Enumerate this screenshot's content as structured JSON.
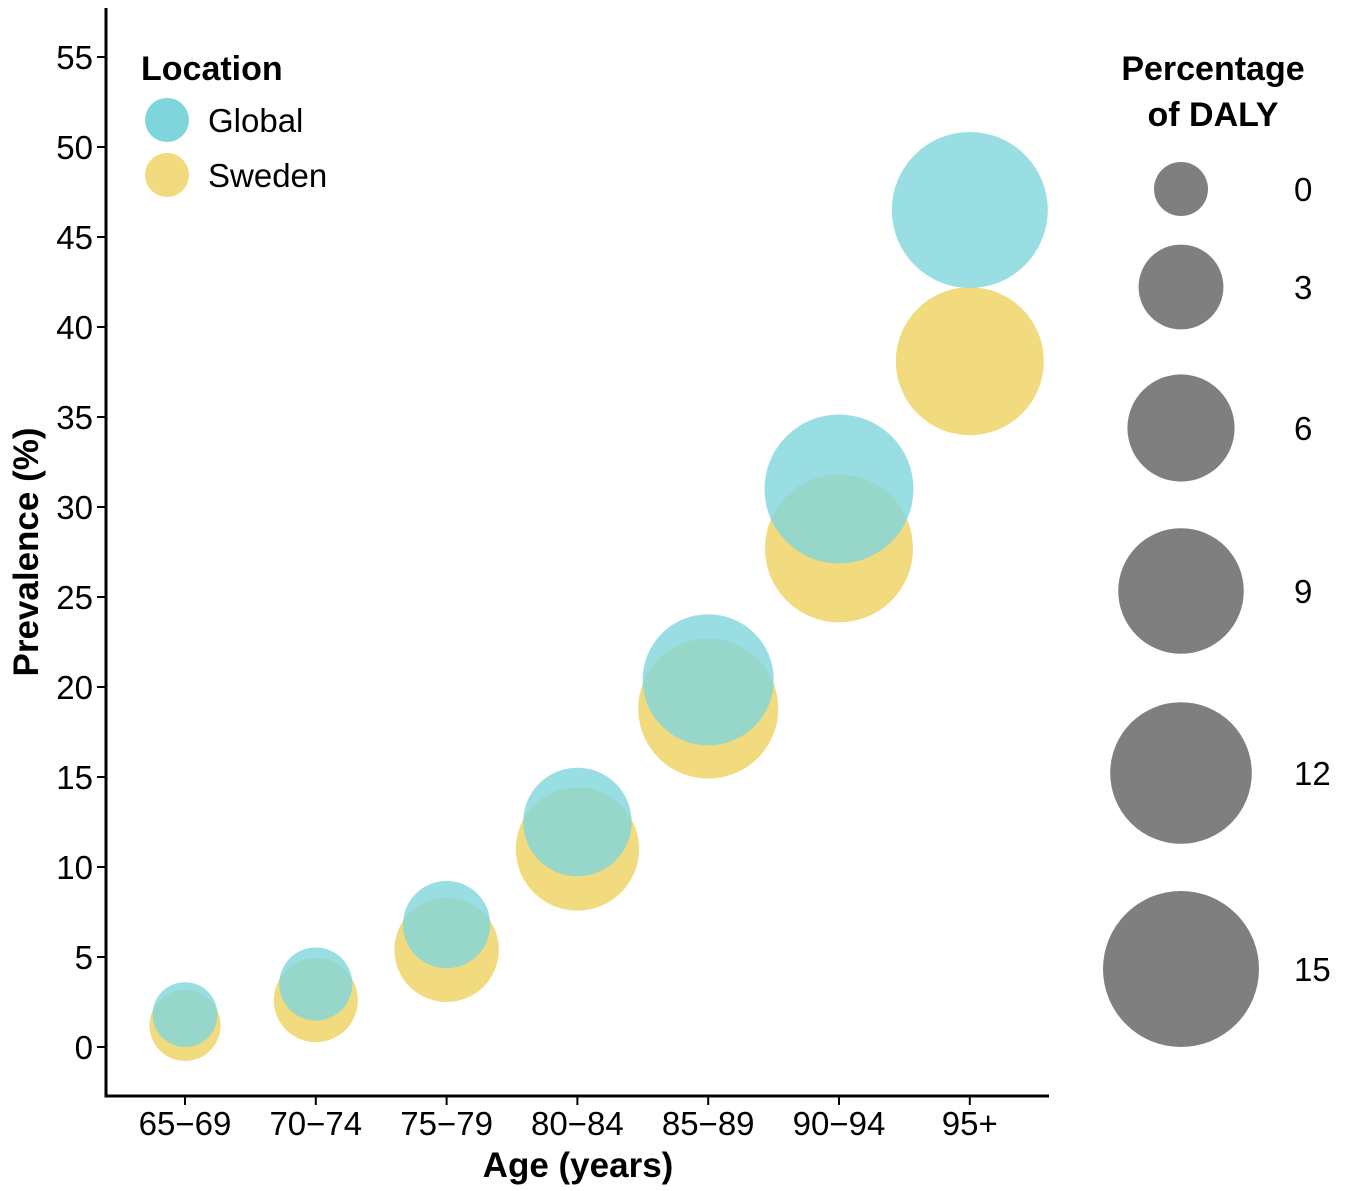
{
  "chart_data": {
    "type": "scatter",
    "subtype": "bubble",
    "xlabel": "Age (years)",
    "ylabel": "Prevalence (%)",
    "ylim": [
      -2.5,
      57.5
    ],
    "yticks": [
      0,
      5,
      10,
      15,
      20,
      25,
      30,
      35,
      40,
      45,
      50,
      55
    ],
    "categories": [
      "65−69",
      "70−74",
      "75−79",
      "80−84",
      "85−89",
      "90−94",
      "95+"
    ],
    "series": [
      {
        "name": "Global",
        "color": "#7ED6DC",
        "values": [
          1.8,
          3.5,
          6.8,
          12.5,
          20.4,
          31.0,
          46.5
        ],
        "sizes": [
          0.9,
          1.7,
          3.3,
          6.2,
          10.0,
          13.5,
          15.0
        ]
      },
      {
        "name": "Sweden",
        "color": "#F2DA7E",
        "values": [
          1.2,
          2.6,
          5.4,
          11.0,
          18.8,
          27.7,
          38.1
        ],
        "sizes": [
          1.5,
          2.9,
          5.6,
          8.6,
          11.7,
          13.3,
          13.3
        ]
      }
    ],
    "grid": false,
    "color_legend": {
      "title": "Location",
      "position": "top-left",
      "entries": [
        "Global",
        "Sweden"
      ]
    },
    "size_legend": {
      "title_lines": [
        "Percentage",
        "of DALY"
      ],
      "position": "right",
      "color": "#7F7F7F",
      "entries": [
        {
          "label": "0",
          "value": 0
        },
        {
          "label": "3",
          "value": 3
        },
        {
          "label": "6",
          "value": 6
        },
        {
          "label": "9",
          "value": 9
        },
        {
          "label": "12",
          "value": 12
        },
        {
          "label": "15",
          "value": 15
        }
      ]
    }
  }
}
